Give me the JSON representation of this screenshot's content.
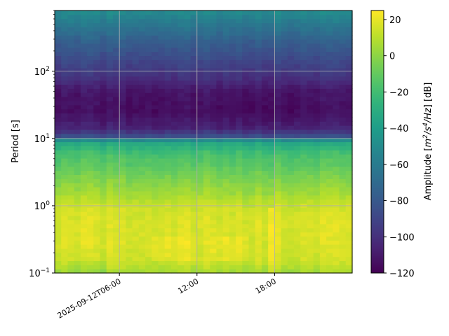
{
  "chart_data": {
    "type": "heatmap",
    "title": "",
    "ylabel": "Period [s]",
    "colorbar_label": "Amplitude [m²/s⁴/Hz] [dB]",
    "colorbar_label_parts": {
      "prefix": "Amplitude [",
      "m": "m",
      "m_exp": "2",
      "sep": "/",
      "s": "s",
      "s_exp": "4",
      "hz": "/Hz",
      "suffix": "] [dB]"
    },
    "colormap": "viridis",
    "y_scale": "log",
    "ylim": [
      0.1,
      800
    ],
    "y_ticks": [
      {
        "value": 0.1,
        "base": "10",
        "exp": "−1"
      },
      {
        "value": 1,
        "base": "10",
        "exp": "0"
      },
      {
        "value": 10,
        "base": "10",
        "exp": "1"
      },
      {
        "value": 100,
        "base": "10",
        "exp": "2"
      }
    ],
    "x_range_hours": [
      1,
      24
    ],
    "x_ticks": [
      {
        "hour": 6,
        "label": "2025-09-12T06:00"
      },
      {
        "hour": 12,
        "label": "12:00"
      },
      {
        "hour": 18,
        "label": "18:00"
      }
    ],
    "color_range": [
      -120,
      25
    ],
    "colorbar_ticks": [
      20,
      0,
      -20,
      -40,
      -60,
      -80,
      -100,
      -120
    ],
    "grid": true,
    "period_profile": [
      {
        "period": 0.1,
        "db": 5
      },
      {
        "period": 0.15,
        "db": 14
      },
      {
        "period": 0.3,
        "db": 17
      },
      {
        "period": 0.6,
        "db": 17
      },
      {
        "period": 1.0,
        "db": 14
      },
      {
        "period": 1.5,
        "db": 5
      },
      {
        "period": 2.5,
        "db": -3
      },
      {
        "period": 4.0,
        "db": -12
      },
      {
        "period": 6.0,
        "db": -18
      },
      {
        "period": 9.0,
        "db": -35
      },
      {
        "period": 11.0,
        "db": -85
      },
      {
        "period": 14.0,
        "db": -105
      },
      {
        "period": 25.0,
        "db": -115
      },
      {
        "period": 50.0,
        "db": -112
      },
      {
        "period": 80.0,
        "db": -100
      },
      {
        "period": 150.0,
        "db": -88
      },
      {
        "period": 300.0,
        "db": -75
      },
      {
        "period": 500.0,
        "db": -62
      },
      {
        "period": 800.0,
        "db": -50
      }
    ],
    "anomalies": [
      {
        "hour_start": 17.3,
        "hour_end": 18.1,
        "period_min": 0.1,
        "period_max": 1.0,
        "db_add": 9
      },
      {
        "hour_start": 8.5,
        "hour_end": 12.0,
        "period_min": 0.15,
        "period_max": 0.35,
        "db_add": 4
      },
      {
        "hour_start": 13.0,
        "hour_end": 16.0,
        "period_min": 0.15,
        "period_max": 0.35,
        "db_add": 4
      },
      {
        "hour_start": 2.0,
        "hour_end": 5.0,
        "period_min": 0.1,
        "period_max": 0.15,
        "db_add": -6
      }
    ]
  }
}
